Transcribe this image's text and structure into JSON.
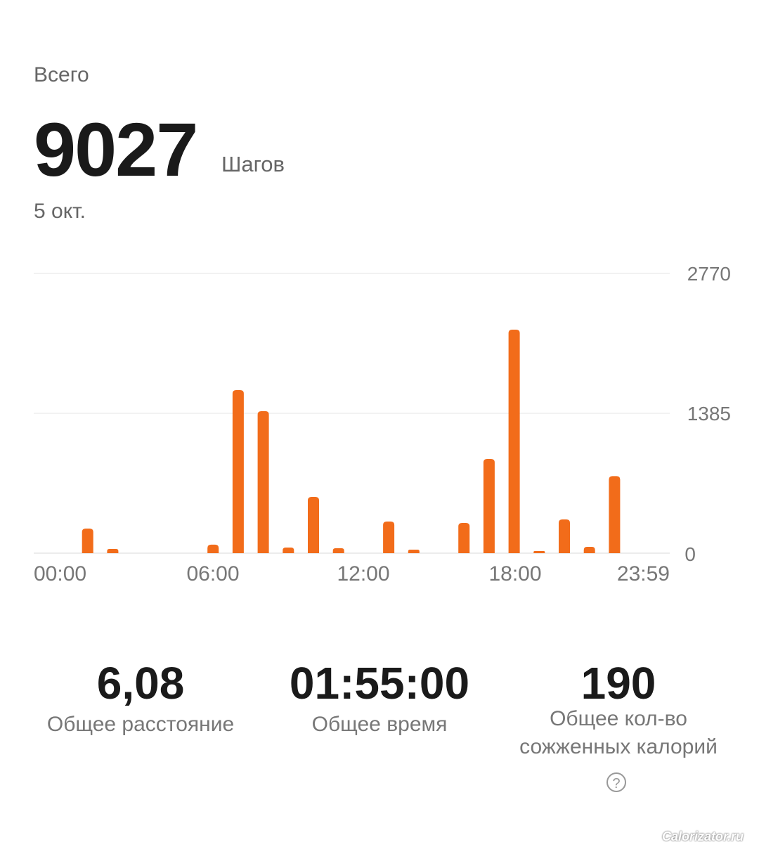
{
  "header": {
    "total_label": "Всего",
    "total_value": "9027",
    "unit": "Шагов",
    "date": "5 окт."
  },
  "chart_data": {
    "type": "bar",
    "xlabel": "",
    "ylabel": "",
    "x_tick_labels": [
      "00:00",
      "06:00",
      "12:00",
      "18:00",
      "23:59"
    ],
    "y_tick_labels": [
      "2770",
      "1385",
      "0"
    ],
    "ylim": [
      0,
      2770
    ],
    "grid": true,
    "bar_color": "#f26c1a",
    "hours": [
      1,
      2,
      6,
      7,
      8,
      9,
      10,
      11,
      13,
      14,
      16,
      17,
      18,
      19,
      20,
      21,
      22
    ],
    "values": [
      244,
      42,
      84,
      1615,
      1406,
      56,
      557,
      49,
      313,
      35,
      299,
      933,
      2213,
      21,
      334,
      63,
      763
    ]
  },
  "stats": [
    {
      "value": "6,08",
      "label": "Общее расстояние"
    },
    {
      "value": "01:55:00",
      "label": "Общее время"
    },
    {
      "value": "190",
      "label": "Общее кол-во сожженных калорий"
    }
  ],
  "help_icon": "question-circle-icon",
  "watermark": "Calorizator.ru"
}
